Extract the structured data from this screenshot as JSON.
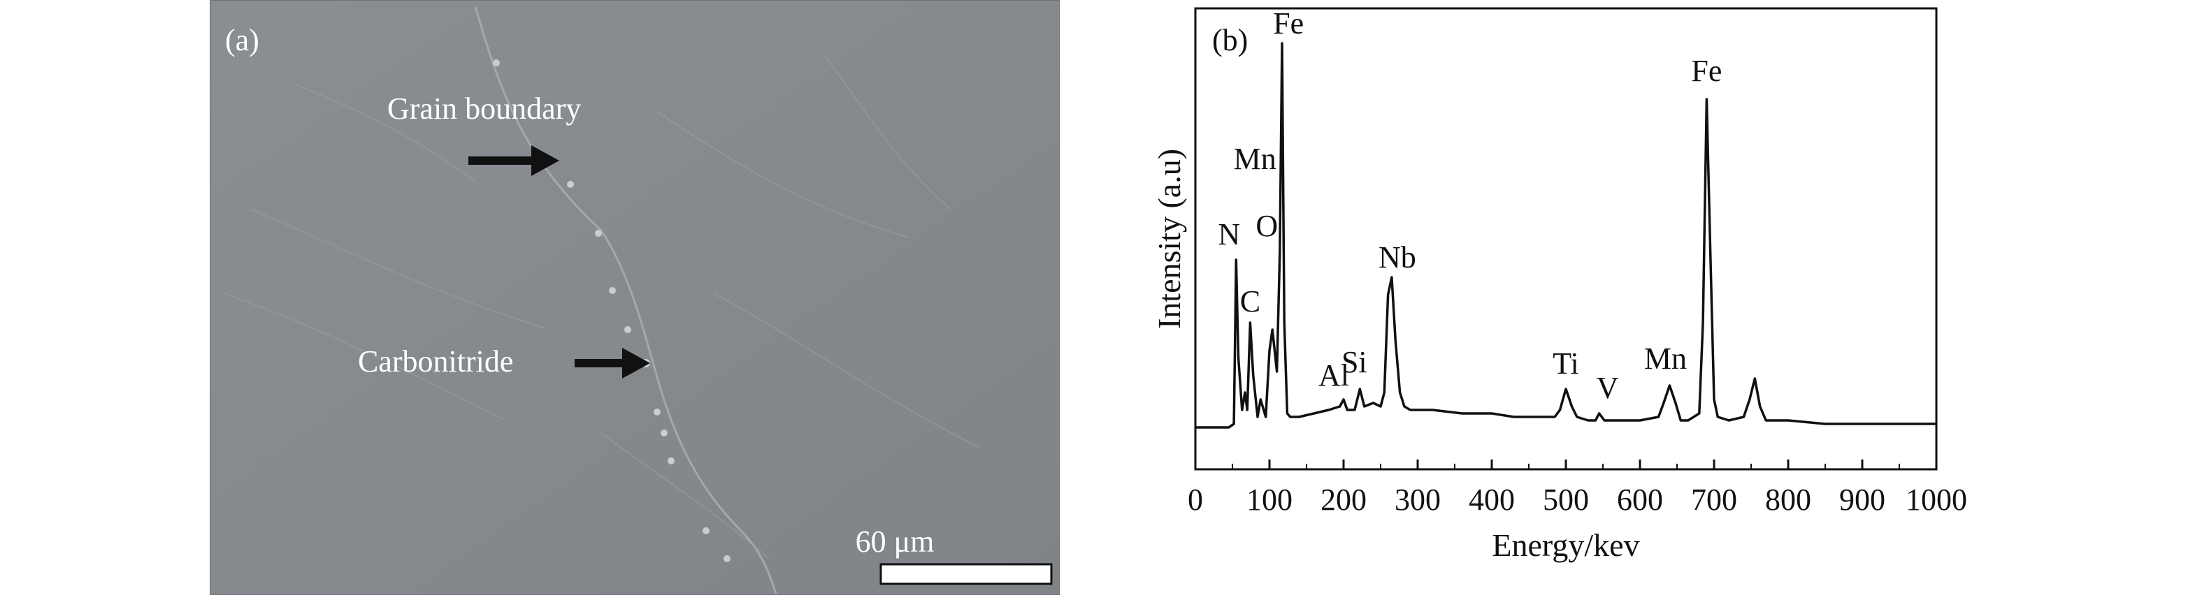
{
  "figure": {
    "panel_a": {
      "label": "(a)",
      "annotations": {
        "grain_boundary": "Grain boundary",
        "carbonitride": "Carbonitride"
      },
      "scale_bar": "60 μm"
    },
    "panel_b": {
      "label": "(b)"
    }
  },
  "chart_data": {
    "type": "line",
    "title": "",
    "xlabel": "Energy/kev",
    "ylabel": "Intensity (a.u)",
    "xlim": [
      0,
      1000
    ],
    "x_ticks": [
      "0",
      "100",
      "200",
      "300",
      "400",
      "500",
      "600",
      "700",
      "800",
      "900",
      "1000"
    ],
    "grid": false,
    "legend": "none",
    "series": [
      {
        "x": [
          0,
          45,
          52,
          55,
          58,
          63,
          67,
          70,
          74,
          78,
          84,
          88,
          95,
          100,
          104,
          110,
          114,
          117,
          120,
          124,
          128,
          140,
          160,
          180,
          195,
          200,
          205,
          215,
          222,
          228,
          240,
          250,
          255,
          260,
          265,
          270,
          276,
          282,
          290,
          320,
          360,
          400,
          430,
          460,
          485,
          492,
          500,
          508,
          515,
          530,
          540,
          545,
          552,
          560,
          600,
          625,
          632,
          640,
          648,
          655,
          665,
          680,
          685,
          690,
          695,
          700,
          705,
          720,
          740,
          748,
          755,
          762,
          770,
          800,
          850,
          900,
          950,
          1000
        ],
        "y": [
          0,
          0,
          1,
          48,
          20,
          5,
          10,
          5,
          30,
          15,
          3,
          8,
          3,
          22,
          28,
          16,
          50,
          110,
          30,
          4,
          3,
          3,
          4,
          5,
          6,
          8,
          5,
          5,
          11,
          6,
          7,
          6,
          10,
          38,
          43,
          25,
          10,
          6,
          5,
          5,
          4,
          4,
          3,
          3,
          3,
          5,
          11,
          6,
          3,
          2,
          2,
          4,
          2,
          2,
          2,
          3,
          7,
          12,
          7,
          2,
          2,
          4,
          30,
          94,
          50,
          8,
          3,
          2,
          3,
          8,
          14,
          6,
          2,
          2,
          1,
          1,
          1,
          1
        ]
      }
    ],
    "peak_labels": [
      {
        "text": "N",
        "x": 55,
        "y": 48
      },
      {
        "text": "C",
        "x": 74,
        "y": 30
      },
      {
        "text": "O",
        "x": 104,
        "y": 50
      },
      {
        "text": "Fe",
        "x": 120,
        "y": 110
      },
      {
        "text": "Mn",
        "x": 120,
        "y": 78
      },
      {
        "text": "Al",
        "x": 200,
        "y": 8
      },
      {
        "text": "Si",
        "x": 222,
        "y": 11
      },
      {
        "text": "Nb",
        "x": 265,
        "y": 43
      },
      {
        "text": "Ti",
        "x": 500,
        "y": 11
      },
      {
        "text": "V",
        "x": 545,
        "y": 4
      },
      {
        "text": "Mn",
        "x": 640,
        "y": 12
      },
      {
        "text": "Fe",
        "x": 690,
        "y": 94
      }
    ]
  }
}
